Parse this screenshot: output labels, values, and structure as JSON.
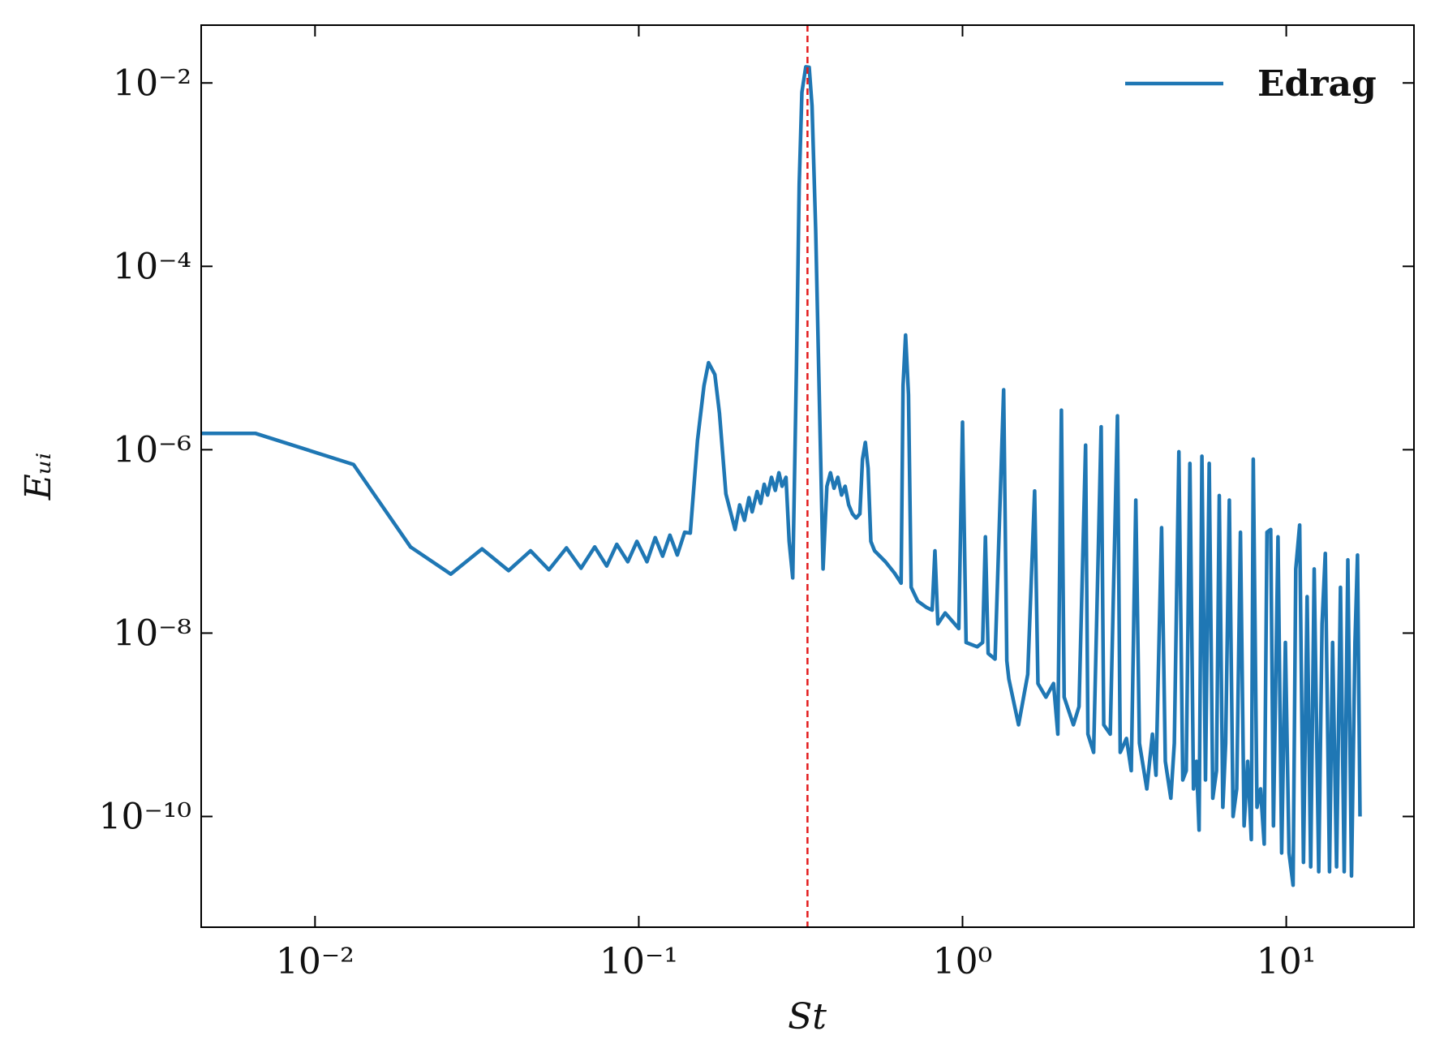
{
  "chart_data": {
    "type": "line",
    "xlabel": "St",
    "ylabel": "Eᵤᵢ",
    "xscale": "log",
    "yscale": "log",
    "xlim": [
      0.00445,
      24.8
    ],
    "ylim": [
      6.2e-12,
      0.0427
    ],
    "xticks": [
      {
        "value": 0.01,
        "label": "10⁻²"
      },
      {
        "value": 0.1,
        "label": "10⁻¹"
      },
      {
        "value": 1,
        "label": "10⁰"
      },
      {
        "value": 10,
        "label": "10¹"
      }
    ],
    "yticks": [
      {
        "value": 1e-10,
        "label": "10⁻¹⁰"
      },
      {
        "value": 1e-08,
        "label": "10⁻⁸"
      },
      {
        "value": 1e-06,
        "label": "10⁻⁶"
      },
      {
        "value": 0.0001,
        "label": "10⁻⁴"
      },
      {
        "value": 0.01,
        "label": "10⁻²"
      }
    ],
    "legend": "upper right",
    "vline": {
      "x": 0.332,
      "color": "#e31a1c"
    },
    "series": [
      {
        "name": "Edrag",
        "color": "#1f77b4",
        "x": [
          0.00445,
          0.00654,
          0.01315,
          0.01972,
          0.02626,
          0.0328,
          0.0396,
          0.0463,
          0.0528,
          0.0598,
          0.0663,
          0.0731,
          0.0796,
          0.0855,
          0.0925,
          0.0987,
          0.106,
          0.1124,
          0.1185,
          0.1248,
          0.1315,
          0.1386,
          0.1442,
          0.1518,
          0.159,
          0.1642,
          0.1718,
          0.1775,
          0.1858,
          0.1983,
          0.205,
          0.212,
          0.219,
          0.224,
          0.232,
          0.238,
          0.244,
          0.25,
          0.257,
          0.264,
          0.271,
          0.277,
          0.285,
          0.2915,
          0.299,
          0.307,
          0.313,
          0.319,
          0.328,
          0.336,
          0.343,
          0.352,
          0.361,
          0.371,
          0.381,
          0.391,
          0.401,
          0.412,
          0.423,
          0.434,
          0.445,
          0.457,
          0.469,
          0.482,
          0.491,
          0.501,
          0.511,
          0.521,
          0.535,
          0.578,
          0.617,
          0.646,
          0.655,
          0.667,
          0.681,
          0.694,
          0.727,
          0.775,
          0.806,
          0.822,
          0.839,
          0.884,
          0.974,
          1.0,
          1.026,
          1.11,
          1.154,
          1.177,
          1.2,
          1.26,
          1.34,
          1.37,
          1.39,
          1.49,
          1.59,
          1.67,
          1.71,
          1.81,
          1.91,
          1.97,
          2.02,
          2.06,
          2.2,
          2.29,
          2.4,
          2.44,
          2.54,
          2.68,
          2.73,
          2.86,
          3.01,
          3.07,
          3.21,
          3.32,
          3.43,
          3.52,
          3.71,
          3.86,
          3.96,
          4.12,
          4.23,
          4.4,
          4.51,
          4.66,
          4.79,
          4.91,
          5.04,
          5.17,
          5.28,
          5.38,
          5.49,
          5.63,
          5.78,
          5.93,
          6.09,
          6.21,
          6.37,
          6.5,
          6.67,
          6.85,
          7.03,
          7.22,
          7.41,
          7.6,
          7.8,
          7.91,
          8.12,
          8.33,
          8.55,
          8.72,
          8.95,
          9.13,
          9.43,
          9.68,
          9.94,
          10.2,
          10.5,
          10.7,
          11.0,
          11.3,
          11.6,
          11.9,
          12.2,
          12.6,
          12.9,
          13.2,
          13.6,
          13.9,
          14.3,
          14.7,
          15.1,
          15.5,
          15.9,
          16.3,
          16.6,
          16.9
        ],
        "values": [
          1.51e-06,
          1.51e-06,
          6.9e-07,
          8.7e-08,
          4.4e-08,
          8.3e-08,
          4.8e-08,
          7.9e-08,
          4.9e-08,
          8.5e-08,
          5.1e-08,
          8.7e-08,
          5.4e-08,
          9.3e-08,
          6e-08,
          1e-07,
          6e-08,
          1.1e-07,
          6.9e-08,
          1.17e-07,
          7.1e-08,
          1.26e-07,
          1.23e-07,
          1.26e-06,
          5e-06,
          8.9e-06,
          6.6e-06,
          2.5e-06,
          3.3e-07,
          1.35e-07,
          2.5e-07,
          1.7e-07,
          3e-07,
          2.1e-07,
          3.5e-07,
          2.6e-07,
          4.2e-07,
          3.2e-07,
          5e-07,
          3.6e-07,
          5.6e-07,
          4e-07,
          5e-07,
          1e-07,
          4e-08,
          7.9e-06,
          0.00079,
          0.0079,
          0.015,
          0.0148,
          0.0056,
          0.00025,
          4e-06,
          5e-08,
          4e-07,
          5.6e-07,
          3.8e-07,
          5e-07,
          3.2e-07,
          4e-07,
          2.5e-07,
          2e-07,
          1.8e-07,
          2e-07,
          7.9e-07,
          1.2e-06,
          6.3e-07,
          1e-07,
          7.9e-08,
          6e-08,
          4.5e-08,
          3.5e-08,
          5e-06,
          1.78e-05,
          4e-06,
          3.16e-08,
          2.24e-08,
          1.9e-08,
          1.78e-08,
          7.9e-08,
          1.26e-08,
          1.66e-08,
          1.12e-08,
          2e-06,
          7.9e-09,
          7.1e-09,
          7.9e-09,
          1.12e-07,
          6e-09,
          5.2e-09,
          4.5e-06,
          5e-09,
          3.16e-09,
          1e-09,
          3.55e-09,
          3.55e-07,
          2.82e-09,
          2e-09,
          2.82e-09,
          7.9e-10,
          2.7e-06,
          2e-09,
          1e-09,
          1.58e-09,
          1.12e-06,
          7.9e-10,
          5e-10,
          1.78e-06,
          1e-09,
          7.9e-10,
          2.34e-06,
          5e-10,
          7.1e-10,
          3.16e-10,
          2.82e-07,
          6.3e-10,
          2e-10,
          7.9e-10,
          2.82e-10,
          1.41e-07,
          4e-10,
          1.58e-10,
          6.3e-10,
          9.5e-07,
          2.5e-10,
          3.16e-10,
          7.1e-07,
          2e-10,
          4e-10,
          7.1e-11,
          8.5e-07,
          2.5e-10,
          7.1e-07,
          1.58e-10,
          3.16e-10,
          3.16e-07,
          1.26e-10,
          6.3e-10,
          2.82e-07,
          1e-10,
          2e-10,
          1.26e-07,
          7.9e-11,
          4e-10,
          5.6e-11,
          7.9e-07,
          1.26e-10,
          2e-10,
          5e-11,
          1.26e-07,
          1.35e-07,
          7.9e-11,
          1.12e-07,
          4e-11,
          7.9e-09,
          4e-11,
          1.78e-11,
          5e-08,
          1.51e-07,
          3.16e-11,
          2.5e-08,
          2.82e-11,
          5e-08,
          2.5e-11,
          1.26e-08,
          7.4e-08,
          2.5e-11,
          7.9e-09,
          2.82e-11,
          3.16e-08,
          2.5e-11,
          6.3e-08,
          2.24e-11,
          7.9e-09,
          7.1e-08,
          1e-10
        ]
      }
    ]
  }
}
